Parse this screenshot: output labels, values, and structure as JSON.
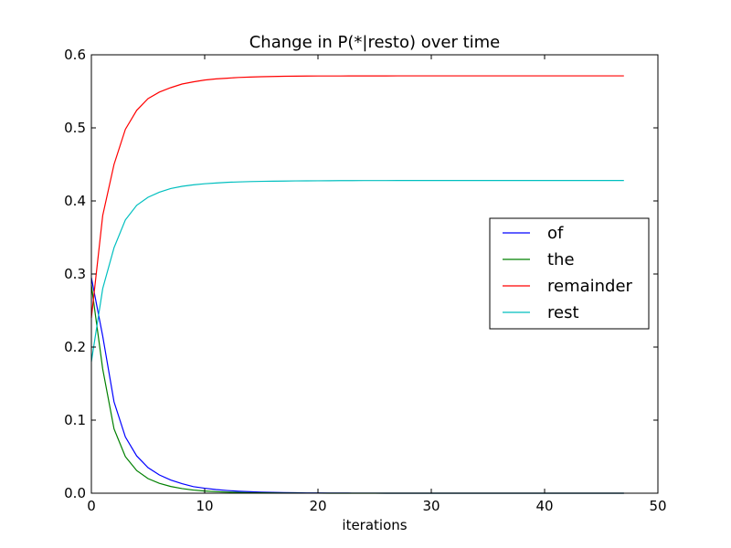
{
  "chart_data": {
    "type": "line",
    "title": "Change in P(*|resto) over time",
    "xlabel": "iterations",
    "ylabel": "",
    "xlim": [
      0,
      50
    ],
    "ylim": [
      0,
      0.6
    ],
    "xticks": [
      0,
      10,
      20,
      30,
      40,
      50
    ],
    "yticks": [
      0.0,
      0.1,
      0.2,
      0.3,
      0.4,
      0.5,
      0.6
    ],
    "xtick_labels": [
      "0",
      "10",
      "20",
      "30",
      "40",
      "50"
    ],
    "ytick_labels": [
      "0.0",
      "0.1",
      "0.2",
      "0.3",
      "0.4",
      "0.5",
      "0.6"
    ],
    "grid": false,
    "legend_position": "center-right",
    "x": [
      0,
      1,
      2,
      3,
      4,
      5,
      6,
      7,
      8,
      9,
      10,
      11,
      12,
      13,
      14,
      15,
      16,
      17,
      18,
      19,
      20,
      21,
      22,
      23,
      24,
      25,
      26,
      27,
      28,
      29,
      30,
      31,
      32,
      33,
      34,
      35,
      36,
      37,
      38,
      39,
      40,
      41,
      42,
      43,
      44,
      45,
      46,
      47
    ],
    "series": [
      {
        "name": "of",
        "color": "#0000ff",
        "values": [
          0.295,
          0.215,
          0.125,
          0.077,
          0.051,
          0.035,
          0.025,
          0.018,
          0.013,
          0.009,
          0.0068,
          0.005,
          0.0037,
          0.0027,
          0.002,
          0.0015,
          0.0011,
          0.0008,
          0.0006,
          0.0004,
          0.0003,
          0.0002,
          0.0002,
          0.0001,
          0.0001,
          0.0001,
          0,
          0,
          0,
          0,
          0,
          0,
          0,
          0,
          0,
          0,
          0,
          0,
          0,
          0,
          0,
          0,
          0,
          0,
          0,
          0,
          0,
          0
        ]
      },
      {
        "name": "the",
        "color": "#008000",
        "values": [
          0.285,
          0.17,
          0.088,
          0.05,
          0.031,
          0.02,
          0.0135,
          0.0092,
          0.0063,
          0.0043,
          0.003,
          0.0021,
          0.0015,
          0.001,
          0.0007,
          0.0005,
          0.0003,
          0.0002,
          0.0002,
          0.0001,
          0.0001,
          0,
          0,
          0,
          0,
          0,
          0,
          0,
          0,
          0,
          0,
          0,
          0,
          0,
          0,
          0,
          0,
          0,
          0,
          0,
          0,
          0,
          0,
          0,
          0,
          0,
          0,
          0
        ]
      },
      {
        "name": "remainder",
        "color": "#ff0000",
        "values": [
          0.24,
          0.38,
          0.45,
          0.498,
          0.524,
          0.54,
          0.549,
          0.555,
          0.56,
          0.563,
          0.5655,
          0.567,
          0.568,
          0.569,
          0.5695,
          0.57,
          0.5703,
          0.5706,
          0.5708,
          0.5709,
          0.571,
          0.571,
          0.571,
          0.5711,
          0.5711,
          0.5711,
          0.5711,
          0.5712,
          0.5712,
          0.5712,
          0.5712,
          0.5712,
          0.5712,
          0.5712,
          0.5712,
          0.5712,
          0.5712,
          0.5712,
          0.5712,
          0.5712,
          0.5712,
          0.5712,
          0.5712,
          0.5712,
          0.5712,
          0.5712,
          0.5712,
          0.5712
        ]
      },
      {
        "name": "rest",
        "color": "#00bfbf",
        "values": [
          0.18,
          0.28,
          0.336,
          0.374,
          0.394,
          0.405,
          0.412,
          0.417,
          0.42,
          0.422,
          0.4235,
          0.4245,
          0.4255,
          0.426,
          0.4265,
          0.4268,
          0.427,
          0.4272,
          0.4274,
          0.4275,
          0.4276,
          0.4277,
          0.4278,
          0.4278,
          0.4279,
          0.4279,
          0.4279,
          0.428,
          0.428,
          0.428,
          0.428,
          0.428,
          0.428,
          0.428,
          0.428,
          0.428,
          0.428,
          0.428,
          0.428,
          0.428,
          0.428,
          0.428,
          0.428,
          0.428,
          0.428,
          0.428,
          0.428,
          0.428
        ]
      }
    ]
  }
}
